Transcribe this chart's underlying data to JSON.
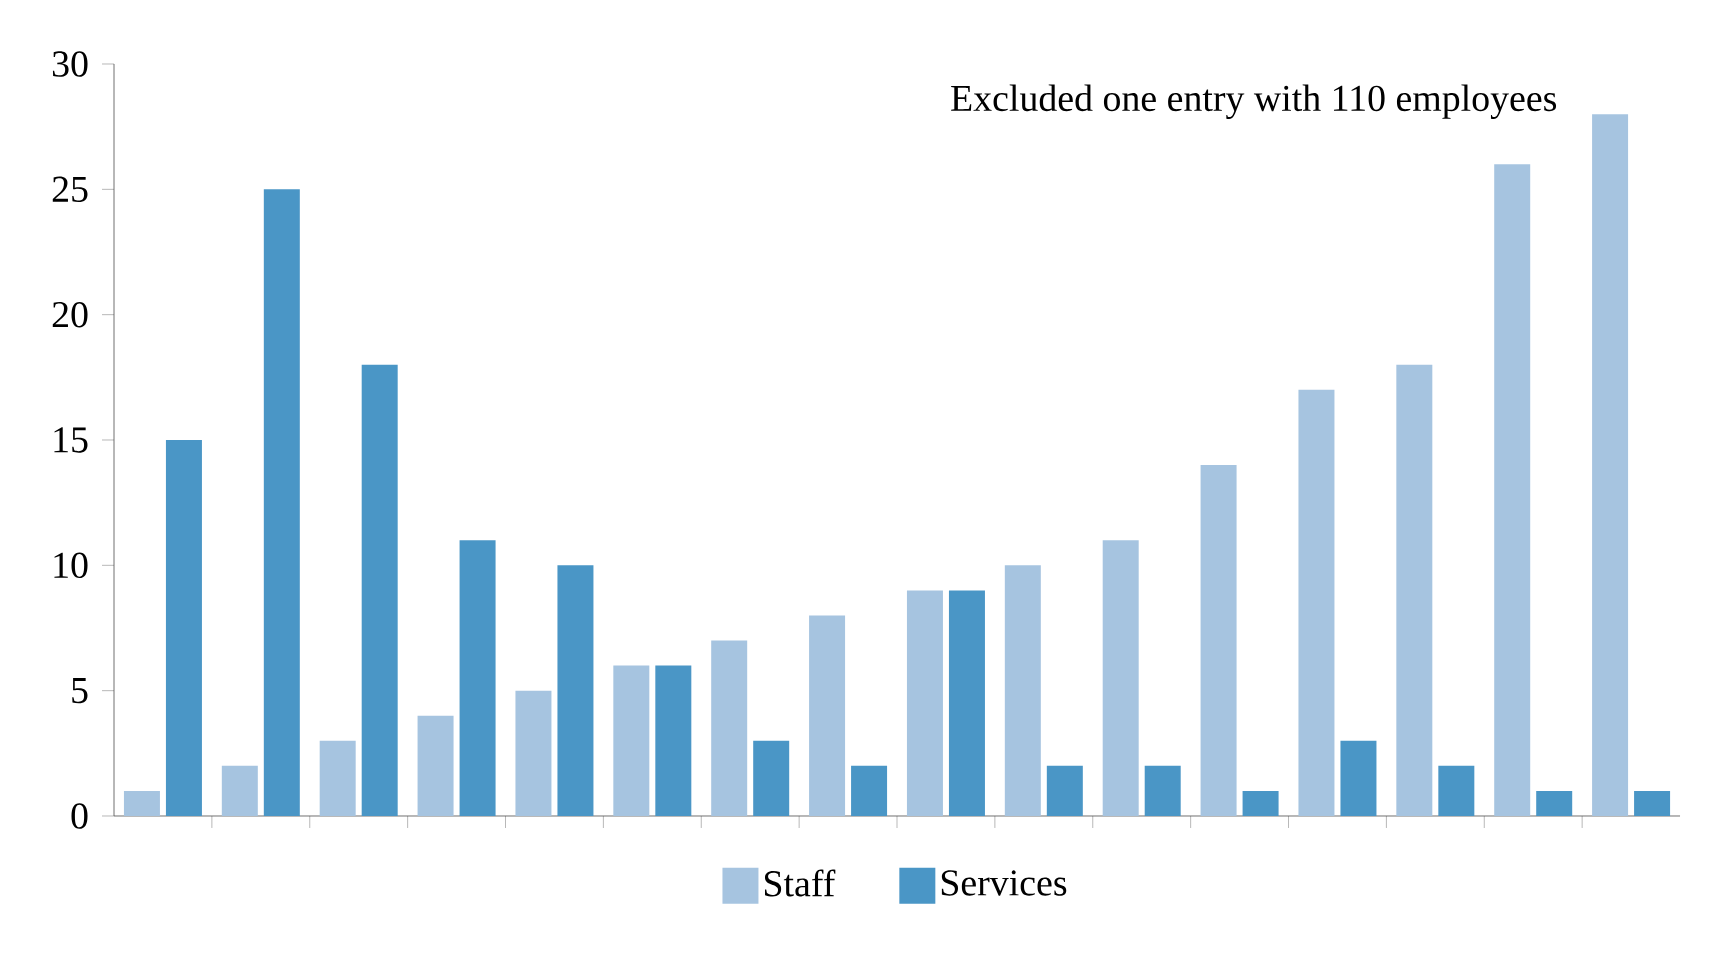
{
  "chart_data": {
    "type": "bar",
    "categories": [
      null,
      null,
      null,
      null,
      null,
      null,
      null,
      null,
      null,
      null,
      null,
      null,
      null,
      null,
      null,
      null
    ],
    "series": [
      {
        "name": "Staff",
        "color": "#a6c4e0",
        "values": [
          1,
          2,
          3,
          4,
          5,
          6,
          7,
          8,
          9,
          10,
          11,
          14,
          17,
          18,
          26,
          28
        ]
      },
      {
        "name": "Services",
        "color": "#4a96c6",
        "values": [
          15,
          25,
          18,
          11,
          10,
          6,
          3,
          2,
          9,
          2,
          2,
          1,
          3,
          2,
          1,
          1
        ]
      }
    ],
    "ylim": [
      0,
      30
    ],
    "yticks": [
      0,
      5,
      10,
      15,
      20,
      25,
      30
    ],
    "tick_labels": "y",
    "legend": "bottom",
    "grid": false,
    "annotations": [
      "Excluded one entry with 110 employees"
    ]
  }
}
